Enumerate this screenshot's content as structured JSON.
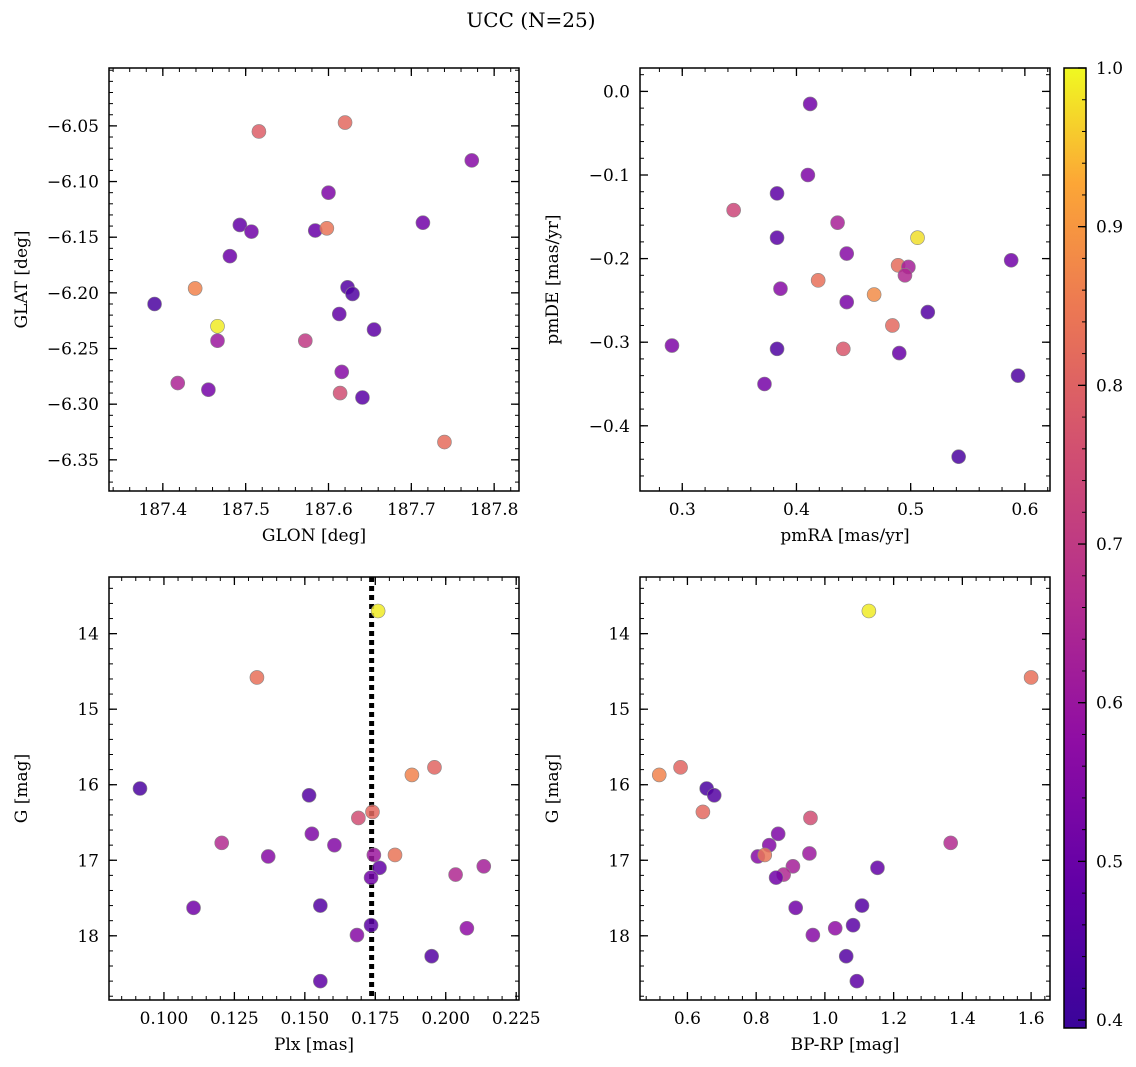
{
  "figure": {
    "title": "UCC (N=25)",
    "colorbar": {
      "colormap": "plasma",
      "range": [
        0.395,
        1.0
      ],
      "ticks": [
        0.4,
        0.5,
        0.6,
        0.7,
        0.8,
        0.9,
        1.0
      ],
      "tick_labels": [
        "0.4",
        "0.5",
        "0.6",
        "0.7",
        "0.8",
        "0.9",
        "1.0"
      ]
    }
  },
  "chart_data": [
    {
      "type": "scatter",
      "xlabel": "GLON [deg]",
      "ylabel": "GLAT [deg]",
      "xlim": [
        187.335,
        187.83
      ],
      "ylim": [
        -6.378,
        -5.998
      ],
      "y_inverted": false,
      "xticks": [
        187.4,
        187.5,
        187.6,
        187.7,
        187.8
      ],
      "xtick_labels": [
        "187.4",
        "187.5",
        "187.6",
        "187.7",
        "187.8"
      ],
      "yticks": [
        -6.05,
        -6.1,
        -6.15,
        -6.2,
        -6.25,
        -6.3,
        -6.35
      ],
      "ytick_labels": [
        "−6.05",
        "−6.10",
        "−6.15",
        "−6.20",
        "−6.25",
        "−6.30",
        "−6.35"
      ],
      "points": [
        {
          "x": 187.516,
          "y": -6.055,
          "c": 0.81
        },
        {
          "x": 187.62,
          "y": -6.047,
          "c": 0.84
        },
        {
          "x": 187.773,
          "y": -6.081,
          "c": 0.55
        },
        {
          "x": 187.6,
          "y": -6.11,
          "c": 0.53
        },
        {
          "x": 187.493,
          "y": -6.139,
          "c": 0.47
        },
        {
          "x": 187.507,
          "y": -6.145,
          "c": 0.5
        },
        {
          "x": 187.584,
          "y": -6.144,
          "c": 0.48
        },
        {
          "x": 187.598,
          "y": -6.142,
          "c": 0.87
        },
        {
          "x": 187.714,
          "y": -6.137,
          "c": 0.5
        },
        {
          "x": 187.481,
          "y": -6.167,
          "c": 0.49
        },
        {
          "x": 187.439,
          "y": -6.196,
          "c": 0.91
        },
        {
          "x": 187.623,
          "y": -6.195,
          "c": 0.44
        },
        {
          "x": 187.629,
          "y": -6.201,
          "c": 0.43
        },
        {
          "x": 187.39,
          "y": -6.21,
          "c": 0.42
        },
        {
          "x": 187.613,
          "y": -6.219,
          "c": 0.47
        },
        {
          "x": 187.655,
          "y": -6.233,
          "c": 0.46
        },
        {
          "x": 187.466,
          "y": -6.23,
          "c": 0.99
        },
        {
          "x": 187.466,
          "y": -6.243,
          "c": 0.6
        },
        {
          "x": 187.572,
          "y": -6.243,
          "c": 0.7
        },
        {
          "x": 187.616,
          "y": -6.271,
          "c": 0.55
        },
        {
          "x": 187.418,
          "y": -6.281,
          "c": 0.64
        },
        {
          "x": 187.455,
          "y": -6.287,
          "c": 0.51
        },
        {
          "x": 187.614,
          "y": -6.29,
          "c": 0.76
        },
        {
          "x": 187.641,
          "y": -6.294,
          "c": 0.45
        },
        {
          "x": 187.74,
          "y": -6.334,
          "c": 0.85
        }
      ]
    },
    {
      "type": "scatter",
      "xlabel": "pmRA [mas/yr]",
      "ylabel": "pmDE [mas/yr]",
      "xlim": [
        0.263,
        0.622
      ],
      "ylim": [
        -0.478,
        0.028
      ],
      "y_inverted": false,
      "xticks": [
        0.3,
        0.4,
        0.5,
        0.6
      ],
      "xtick_labels": [
        "0.3",
        "0.4",
        "0.5",
        "0.6"
      ],
      "yticks": [
        0.0,
        -0.1,
        -0.2,
        -0.3,
        -0.4
      ],
      "ytick_labels": [
        "0.0",
        "−0.1",
        "−0.2",
        "−0.3",
        "−0.4"
      ],
      "points": [
        {
          "x": 0.412,
          "y": -0.015,
          "c": 0.5
        },
        {
          "x": 0.41,
          "y": -0.1,
          "c": 0.53
        },
        {
          "x": 0.383,
          "y": -0.122,
          "c": 0.46
        },
        {
          "x": 0.345,
          "y": -0.142,
          "c": 0.74
        },
        {
          "x": 0.436,
          "y": -0.157,
          "c": 0.63
        },
        {
          "x": 0.383,
          "y": -0.175,
          "c": 0.45
        },
        {
          "x": 0.506,
          "y": -0.175,
          "c": 0.98
        },
        {
          "x": 0.444,
          "y": -0.194,
          "c": 0.55
        },
        {
          "x": 0.588,
          "y": -0.202,
          "c": 0.5
        },
        {
          "x": 0.489,
          "y": -0.208,
          "c": 0.85
        },
        {
          "x": 0.498,
          "y": -0.21,
          "c": 0.62
        },
        {
          "x": 0.495,
          "y": -0.22,
          "c": 0.65
        },
        {
          "x": 0.419,
          "y": -0.226,
          "c": 0.86
        },
        {
          "x": 0.386,
          "y": -0.236,
          "c": 0.55
        },
        {
          "x": 0.468,
          "y": -0.243,
          "c": 0.92
        },
        {
          "x": 0.444,
          "y": -0.252,
          "c": 0.52
        },
        {
          "x": 0.515,
          "y": -0.264,
          "c": 0.44
        },
        {
          "x": 0.484,
          "y": -0.28,
          "c": 0.84
        },
        {
          "x": 0.291,
          "y": -0.304,
          "c": 0.53
        },
        {
          "x": 0.383,
          "y": -0.308,
          "c": 0.43
        },
        {
          "x": 0.441,
          "y": -0.308,
          "c": 0.79
        },
        {
          "x": 0.49,
          "y": -0.313,
          "c": 0.48
        },
        {
          "x": 0.594,
          "y": -0.34,
          "c": 0.43
        },
        {
          "x": 0.372,
          "y": -0.35,
          "c": 0.51
        },
        {
          "x": 0.542,
          "y": -0.437,
          "c": 0.42
        }
      ]
    },
    {
      "type": "scatter",
      "xlabel": "Plx [mas]",
      "ylabel": "G [mag]",
      "xlim": [
        0.0805,
        0.226
      ],
      "ylim": [
        18.85,
        13.25
      ],
      "y_inverted": true,
      "xticks": [
        0.1,
        0.125,
        0.15,
        0.175,
        0.2,
        0.225
      ],
      "xtick_labels": [
        "0.100",
        "0.125",
        "0.150",
        "0.175",
        "0.200",
        "0.225"
      ],
      "yticks": [
        14,
        15,
        16,
        17,
        18
      ],
      "ytick_labels": [
        "14",
        "15",
        "16",
        "17",
        "18"
      ],
      "vline": {
        "x": 0.1737,
        "style": "dotted"
      },
      "points": [
        {
          "x": 0.176,
          "y": 13.7,
          "c": 0.99
        },
        {
          "x": 0.133,
          "y": 14.58,
          "c": 0.86
        },
        {
          "x": 0.196,
          "y": 15.77,
          "c": 0.83
        },
        {
          "x": 0.188,
          "y": 15.87,
          "c": 0.91
        },
        {
          "x": 0.0915,
          "y": 16.05,
          "c": 0.42
        },
        {
          "x": 0.1515,
          "y": 16.14,
          "c": 0.44
        },
        {
          "x": 0.174,
          "y": 16.36,
          "c": 0.84
        },
        {
          "x": 0.169,
          "y": 16.44,
          "c": 0.76
        },
        {
          "x": 0.1525,
          "y": 16.65,
          "c": 0.53
        },
        {
          "x": 0.1205,
          "y": 16.77,
          "c": 0.66
        },
        {
          "x": 0.1605,
          "y": 16.8,
          "c": 0.54
        },
        {
          "x": 0.137,
          "y": 16.95,
          "c": 0.55
        },
        {
          "x": 0.1745,
          "y": 16.93,
          "c": 0.6
        },
        {
          "x": 0.182,
          "y": 16.93,
          "c": 0.87
        },
        {
          "x": 0.2135,
          "y": 17.08,
          "c": 0.62
        },
        {
          "x": 0.1765,
          "y": 17.1,
          "c": 0.47
        },
        {
          "x": 0.2035,
          "y": 17.19,
          "c": 0.65
        },
        {
          "x": 0.1735,
          "y": 17.23,
          "c": 0.5
        },
        {
          "x": 0.1555,
          "y": 17.6,
          "c": 0.44
        },
        {
          "x": 0.1105,
          "y": 17.63,
          "c": 0.5
        },
        {
          "x": 0.1735,
          "y": 17.86,
          "c": 0.45
        },
        {
          "x": 0.2075,
          "y": 17.9,
          "c": 0.57
        },
        {
          "x": 0.1685,
          "y": 17.99,
          "c": 0.55
        },
        {
          "x": 0.195,
          "y": 18.27,
          "c": 0.44
        },
        {
          "x": 0.1555,
          "y": 18.6,
          "c": 0.46
        }
      ]
    },
    {
      "type": "scatter",
      "xlabel": "BP-RP [mag]",
      "ylabel": "G [mag]",
      "xlim": [
        0.462,
        1.655
      ],
      "ylim": [
        18.85,
        13.25
      ],
      "y_inverted": true,
      "xticks": [
        0.6,
        0.8,
        1.0,
        1.2,
        1.4,
        1.6
      ],
      "xtick_labels": [
        "0.6",
        "0.8",
        "1.0",
        "1.2",
        "1.4",
        "1.6"
      ],
      "yticks": [
        14,
        15,
        16,
        17,
        18
      ],
      "ytick_labels": [
        "14",
        "15",
        "16",
        "17",
        "18"
      ],
      "points": [
        {
          "x": 1.128,
          "y": 13.7,
          "c": 0.99
        },
        {
          "x": 1.6,
          "y": 14.58,
          "c": 0.86
        },
        {
          "x": 0.58,
          "y": 15.77,
          "c": 0.83
        },
        {
          "x": 0.518,
          "y": 15.87,
          "c": 0.91
        },
        {
          "x": 0.656,
          "y": 16.05,
          "c": 0.42
        },
        {
          "x": 0.678,
          "y": 16.14,
          "c": 0.44
        },
        {
          "x": 0.645,
          "y": 16.36,
          "c": 0.84
        },
        {
          "x": 0.958,
          "y": 16.44,
          "c": 0.76
        },
        {
          "x": 0.864,
          "y": 16.65,
          "c": 0.53
        },
        {
          "x": 1.366,
          "y": 16.77,
          "c": 0.66
        },
        {
          "x": 0.838,
          "y": 16.8,
          "c": 0.54
        },
        {
          "x": 0.955,
          "y": 16.91,
          "c": 0.6
        },
        {
          "x": 0.805,
          "y": 16.95,
          "c": 0.55
        },
        {
          "x": 0.825,
          "y": 16.93,
          "c": 0.87
        },
        {
          "x": 0.907,
          "y": 17.08,
          "c": 0.62
        },
        {
          "x": 1.153,
          "y": 17.1,
          "c": 0.47
        },
        {
          "x": 0.88,
          "y": 17.19,
          "c": 0.65
        },
        {
          "x": 0.858,
          "y": 17.23,
          "c": 0.5
        },
        {
          "x": 1.108,
          "y": 17.6,
          "c": 0.44
        },
        {
          "x": 0.915,
          "y": 17.63,
          "c": 0.5
        },
        {
          "x": 1.082,
          "y": 17.86,
          "c": 0.45
        },
        {
          "x": 1.03,
          "y": 17.9,
          "c": 0.57
        },
        {
          "x": 0.965,
          "y": 17.99,
          "c": 0.55
        },
        {
          "x": 1.062,
          "y": 18.27,
          "c": 0.44
        },
        {
          "x": 1.093,
          "y": 18.6,
          "c": 0.46
        }
      ]
    }
  ]
}
